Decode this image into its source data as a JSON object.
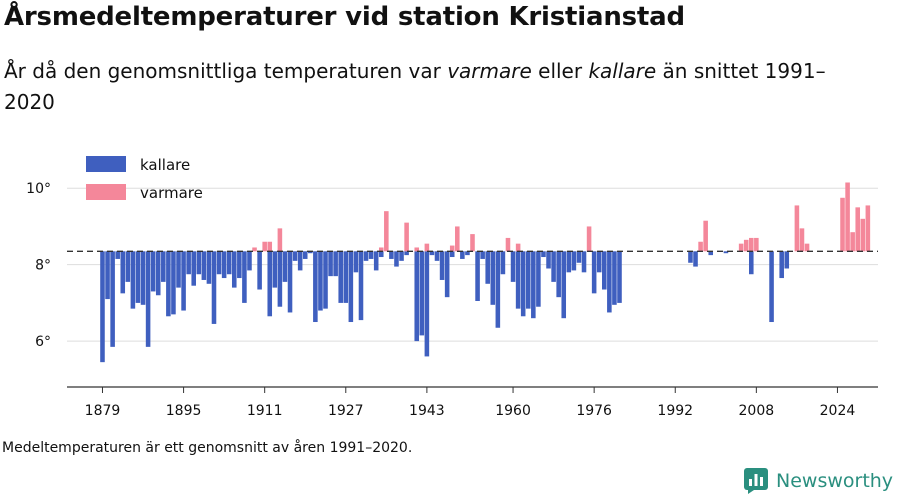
{
  "title": "Årsmedeltemperaturer vid station Kristianstad",
  "subtitle": {
    "part1": "År då den genomsnittliga temperaturen var ",
    "warm_word": "varmare",
    "part2": " eller ",
    "cold_word": "kallare",
    "part3": " än snittet 1991–2020"
  },
  "footnote": "Medeltemperaturen är ett genomsnitt av åren 1991–2020.",
  "brand": "Newsworthy",
  "colors": {
    "colder": "#3f5fbf",
    "warmer": "#f4879a",
    "baseline": "#333333",
    "grid": "#dddddd",
    "brand": "#2a8f7f"
  },
  "chart_data": {
    "type": "bar",
    "baseline": 8.35,
    "ylim": [
      4.8,
      11
    ],
    "yticks": [
      6,
      8,
      10
    ],
    "ytick_labels": [
      "6°",
      "8°",
      "10°"
    ],
    "xlim": [
      1872,
      2032
    ],
    "xticks": [
      1879,
      1895,
      1911,
      1927,
      1943,
      1960,
      1976,
      1992,
      2008,
      2024
    ],
    "legend": [
      {
        "key": "colder",
        "label": "kallare"
      },
      {
        "key": "warmer",
        "label": "varmare"
      }
    ],
    "legend_position": "top-left",
    "grid": true,
    "series": [
      {
        "name": "kallare",
        "x": [
          1879,
          1880,
          1881,
          1882,
          1883,
          1884,
          1885,
          1886,
          1887,
          1888,
          1889,
          1890,
          1891,
          1892,
          1893,
          1894,
          1895,
          1896,
          1897,
          1898,
          1899,
          1900,
          1901,
          1902,
          1903,
          1904,
          1905,
          1906,
          1907,
          1908,
          1910,
          1912,
          1913,
          1914,
          1915,
          1916,
          1917,
          1918,
          1919,
          1920,
          1921,
          1922,
          1923,
          1924,
          1925,
          1926,
          1927,
          1928,
          1929,
          1930,
          1931,
          1932,
          1933,
          1934,
          1936,
          1937,
          1938,
          1939,
          1941,
          1942,
          1943,
          1944,
          1945,
          1946,
          1947,
          1948,
          1950,
          1951,
          1953,
          1954,
          1955,
          1956,
          1957,
          1958,
          1960,
          1961,
          1962,
          1963,
          1964,
          1965,
          1966,
          1967,
          1968,
          1969,
          1970,
          1971,
          1972,
          1973,
          1974,
          1976,
          1977,
          1978,
          1979,
          1980,
          1981,
          1995,
          1996,
          1999,
          2002,
          2007,
          2011,
          2013,
          2014
        ],
        "values": [
          5.45,
          7.1,
          5.85,
          8.15,
          7.25,
          7.55,
          6.85,
          7.0,
          6.95,
          5.85,
          7.3,
          7.2,
          7.55,
          6.65,
          6.7,
          7.4,
          6.8,
          7.75,
          7.45,
          7.75,
          7.6,
          7.5,
          6.45,
          7.75,
          7.65,
          7.75,
          7.4,
          7.65,
          7.0,
          7.85,
          7.35,
          6.65,
          7.4,
          6.9,
          7.55,
          6.75,
          8.1,
          7.85,
          8.15,
          8.3,
          6.5,
          6.8,
          6.85,
          7.7,
          7.7,
          7.0,
          7.0,
          6.5,
          7.8,
          6.55,
          8.1,
          8.15,
          7.85,
          8.2,
          8.15,
          7.95,
          8.1,
          8.25,
          6.0,
          6.15,
          5.6,
          8.25,
          8.1,
          7.6,
          7.15,
          8.2,
          8.15,
          8.25,
          7.05,
          8.15,
          7.5,
          6.95,
          6.35,
          7.75,
          7.55,
          6.85,
          6.65,
          6.85,
          6.6,
          6.9,
          8.2,
          7.9,
          7.55,
          7.15,
          6.6,
          7.8,
          7.85,
          8.05,
          7.8,
          7.25,
          7.8,
          7.35,
          6.75,
          6.95,
          7.0,
          8.05,
          7.95,
          8.25,
          8.3,
          7.75,
          6.5,
          7.65,
          7.9
        ]
      },
      {
        "name": "varmare",
        "x": [
          1909,
          1911,
          1912,
          1914,
          1934,
          1935,
          1939,
          1941,
          1943,
          1948,
          1949,
          1952,
          1959,
          1961,
          1975,
          1997,
          1998,
          2005,
          2006,
          2007,
          2008,
          2016,
          2017,
          2018,
          2025,
          2026,
          2027,
          2028,
          2029,
          2030
        ],
        "values": [
          8.45,
          8.6,
          8.6,
          8.95,
          8.45,
          9.4,
          9.1,
          8.45,
          8.55,
          8.5,
          9.0,
          8.8,
          8.7,
          8.55,
          9.0,
          8.6,
          9.15,
          8.55,
          8.65,
          8.7,
          8.7,
          9.55,
          8.95,
          8.55,
          9.75,
          10.15,
          8.85,
          9.5,
          9.2,
          9.55
        ]
      }
    ]
  }
}
